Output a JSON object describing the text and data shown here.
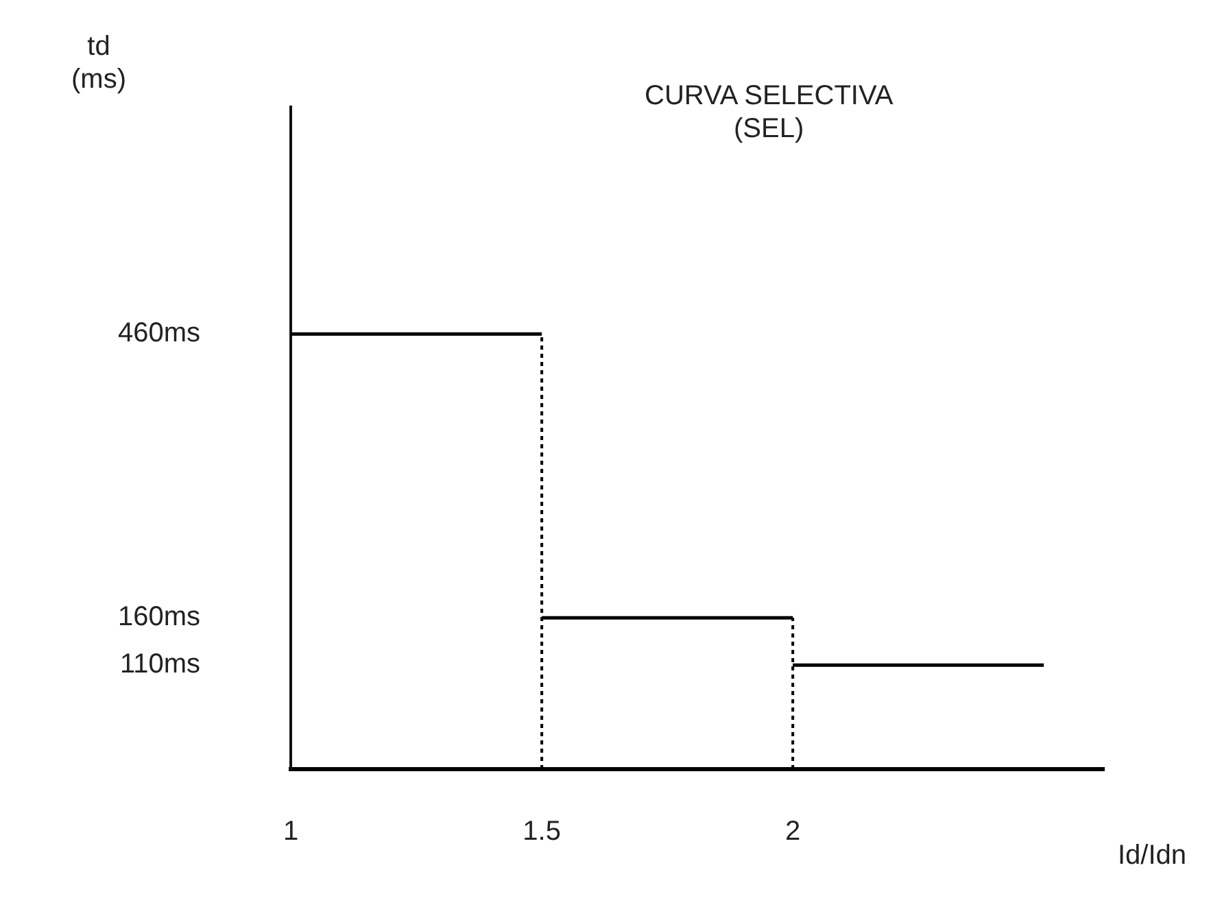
{
  "chart_data": {
    "type": "line",
    "title": "CURVA SELECTIVA\n(SEL)",
    "xlabel": "Id/Idn",
    "ylabel": "td\n(ms)",
    "xlim": [
      1,
      2.62
    ],
    "xticks": [
      1,
      1.5,
      2
    ],
    "ylim": [
      0,
      700
    ],
    "yticks": [
      {
        "value": 460,
        "label": "460ms"
      },
      {
        "value": 160,
        "label": "160ms"
      },
      {
        "value": 110,
        "label": "110ms"
      }
    ],
    "grid": false,
    "legend": false,
    "marker": "none",
    "series": [
      {
        "color": "#000000",
        "x": [
          1,
          1.5
        ],
        "values": [
          460,
          460
        ],
        "line_style": "solid"
      },
      {
        "color": "#000000",
        "x": [
          1.5,
          2
        ],
        "values": [
          160,
          160
        ],
        "line_style": "solid"
      },
      {
        "color": "#000000",
        "x": [
          2,
          2.5
        ],
        "values": [
          110,
          110
        ],
        "line_style": "solid"
      },
      {
        "color": "#000000",
        "x": [
          1.5,
          1.5
        ],
        "values": [
          0,
          460
        ],
        "line_style": "dotted"
      },
      {
        "color": "#000000",
        "x": [
          2,
          2
        ],
        "values": [
          0,
          160
        ],
        "line_style": "dotted"
      }
    ]
  }
}
